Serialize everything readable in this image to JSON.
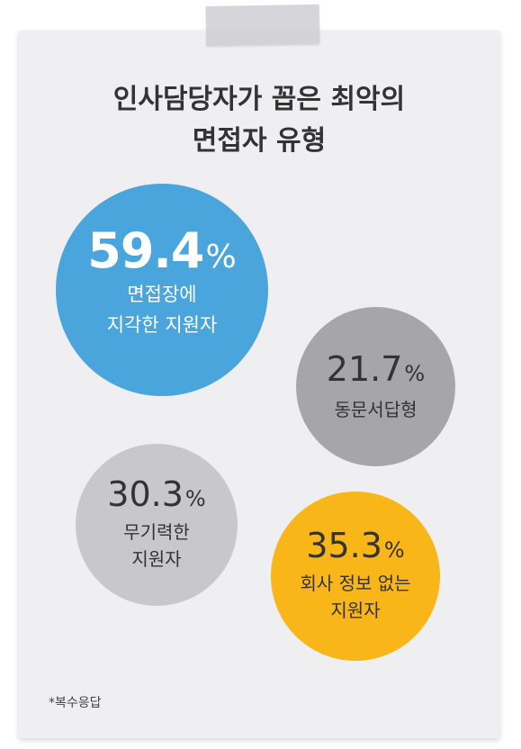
{
  "chart_data": {
    "type": "bubble",
    "title": "인사담당자가 꼽은 최악의 면접자 유형",
    "title_lines": [
      "인사담당자가 꼽은 최악의",
      "면접자 유형"
    ],
    "unit": "%",
    "categories": [
      "면접장에 지각한 지원자",
      "동문서답형",
      "무기력한 지원자",
      "회사 정보 없는 지원자"
    ],
    "values": [
      59.4,
      21.7,
      30.3,
      35.3
    ],
    "items": [
      {
        "value": 59.4,
        "value_text": "59.4",
        "label": "면접장에\n지각한 지원자",
        "color": "#4aa5dd",
        "text_color": "#ffffff"
      },
      {
        "value": 21.7,
        "value_text": "21.7",
        "label": "동문서답형",
        "color": "#a6a6a9",
        "text_color": "#333333"
      },
      {
        "value": 30.3,
        "value_text": "30.3",
        "label": "무기력한\n지원자",
        "color": "#c8c8cb",
        "text_color": "#333333"
      },
      {
        "value": 35.3,
        "value_text": "35.3",
        "label": "회사 정보 없는\n지원자",
        "color": "#f8b618",
        "text_color": "#333333"
      }
    ],
    "footnote": "*복수응답"
  }
}
